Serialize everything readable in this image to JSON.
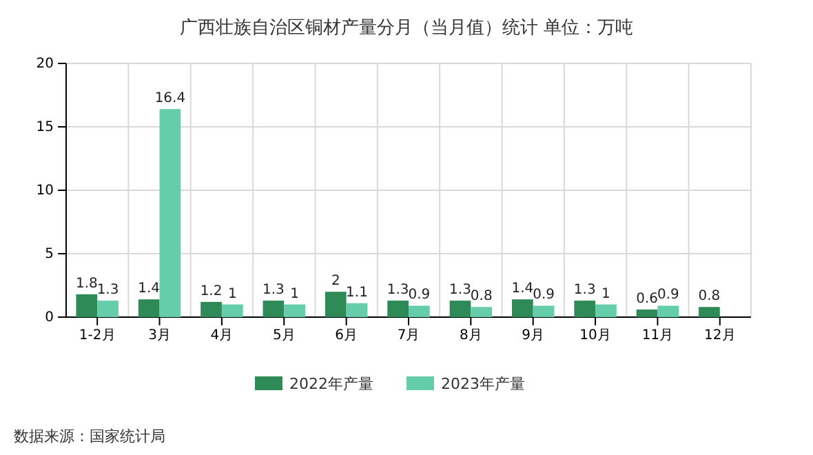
{
  "chart_data": {
    "type": "bar",
    "title": "广西壮族自治区铜材产量分月（当月值）统计  单位：万吨",
    "categories": [
      "1-2月",
      "3月",
      "4月",
      "5月",
      "6月",
      "7月",
      "8月",
      "9月",
      "10月",
      "11月",
      "12月"
    ],
    "series": [
      {
        "name": "2022年产量",
        "color": "#2e8b57",
        "values": [
          1.8,
          1.4,
          1.2,
          1.3,
          2,
          1.3,
          1.3,
          1.4,
          1.3,
          0.6,
          0.8
        ]
      },
      {
        "name": "2023年产量",
        "color": "#66cdaa",
        "values": [
          1.3,
          16.4,
          1,
          1,
          1.1,
          0.9,
          0.8,
          0.9,
          1,
          0.9,
          null
        ]
      }
    ],
    "ylim": [
      0,
      20
    ],
    "yticks": [
      0,
      5,
      10,
      15,
      20
    ],
    "grid": true,
    "legend": "bottom",
    "data_labels": true,
    "annotations": [
      "数据来源：国家统计局"
    ]
  }
}
